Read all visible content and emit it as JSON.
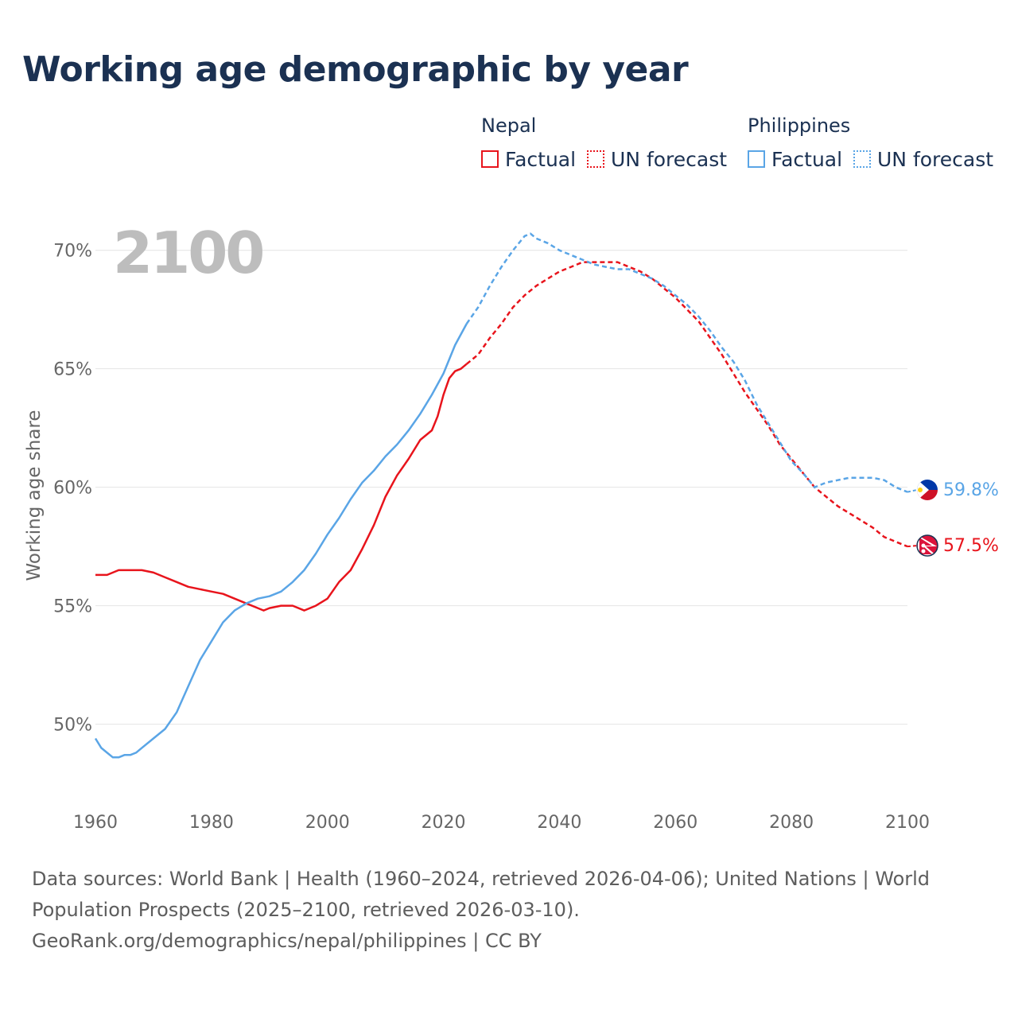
{
  "title": "Working age demographic by year",
  "legend": {
    "groups": [
      {
        "name": "Nepal",
        "factual_label": "Factual",
        "forecast_label": "UN forecast"
      },
      {
        "name": "Philippines",
        "factual_label": "Factual",
        "forecast_label": "UN forecast"
      }
    ]
  },
  "colors": {
    "nepal": "#e8141c",
    "philippines": "#5aa5e6",
    "grid": "#e4e4e4",
    "year": "#bdbdbd"
  },
  "year_display": "2100",
  "end_labels": {
    "nepal": "57.5%",
    "philippines": "59.8%"
  },
  "icons": {
    "nepal": "nepal-flag-icon",
    "philippines": "philippines-flag-icon"
  },
  "sources": {
    "text": "Data sources: World Bank | Health (1960–2024, retrieved 2026-04-06); United Nations | World Population Prospects (2025–2100, retrieved 2026-03-10).",
    "credit": "GeoRank.org/demographics/nepal/philippines | CC BY"
  },
  "chart_data": {
    "type": "line",
    "title": "Working age demographic by year",
    "xlabel": "",
    "ylabel": "Working age share",
    "xlim": [
      1960,
      2100
    ],
    "ylim": [
      47.0,
      71.5
    ],
    "yticks": [
      50,
      55,
      60,
      65,
      70
    ],
    "ytick_labels": [
      "50%",
      "55%",
      "60%",
      "65%",
      "70%"
    ],
    "xticks": [
      1960,
      1980,
      2000,
      2020,
      2040,
      2060,
      2080,
      2100
    ],
    "xtick_labels": [
      "1960",
      "1980",
      "2000",
      "2020",
      "2040",
      "2060",
      "2080",
      "2100"
    ],
    "grid": true,
    "legend_position": "top-right",
    "factual_range": [
      1960,
      2024
    ],
    "forecast_range": [
      2024,
      2100
    ],
    "series": [
      {
        "name": "Nepal",
        "x": [
          1960,
          1962,
          1964,
          1966,
          1968,
          1970,
          1972,
          1974,
          1976,
          1978,
          1980,
          1982,
          1984,
          1986,
          1988,
          1989,
          1990,
          1992,
          1994,
          1996,
          1998,
          2000,
          2002,
          2004,
          2006,
          2008,
          2010,
          2012,
          2014,
          2016,
          2018,
          2019,
          2020,
          2021,
          2022,
          2023,
          2024,
          2026,
          2028,
          2030,
          2032,
          2034,
          2036,
          2038,
          2040,
          2042,
          2044,
          2046,
          2048,
          2050,
          2052,
          2054,
          2056,
          2058,
          2060,
          2062,
          2064,
          2066,
          2068,
          2070,
          2072,
          2074,
          2076,
          2078,
          2080,
          2082,
          2084,
          2086,
          2088,
          2090,
          2092,
          2094,
          2096,
          2098,
          2100
        ],
        "values": [
          56.3,
          56.3,
          56.5,
          56.5,
          56.5,
          56.4,
          56.2,
          56.0,
          55.8,
          55.7,
          55.6,
          55.5,
          55.3,
          55.1,
          54.9,
          54.8,
          54.9,
          55.0,
          55.0,
          54.8,
          55.0,
          55.3,
          56.0,
          56.5,
          57.4,
          58.4,
          59.6,
          60.5,
          61.2,
          62.0,
          62.4,
          63.0,
          63.9,
          64.6,
          64.9,
          65.0,
          65.2,
          65.6,
          66.3,
          66.9,
          67.6,
          68.1,
          68.5,
          68.8,
          69.1,
          69.3,
          69.5,
          69.5,
          69.5,
          69.5,
          69.3,
          69.1,
          68.8,
          68.4,
          68.0,
          67.5,
          67.0,
          66.3,
          65.6,
          64.8,
          64.0,
          63.3,
          62.6,
          61.8,
          61.2,
          60.6,
          60.0,
          59.6,
          59.2,
          58.9,
          58.6,
          58.3,
          57.9,
          57.7,
          57.5
        ]
      },
      {
        "name": "Philippines",
        "x": [
          1960,
          1961,
          1962,
          1963,
          1964,
          1965,
          1966,
          1967,
          1968,
          1970,
          1972,
          1974,
          1976,
          1978,
          1980,
          1982,
          1984,
          1986,
          1988,
          1990,
          1992,
          1994,
          1996,
          1998,
          2000,
          2002,
          2004,
          2006,
          2008,
          2010,
          2012,
          2014,
          2016,
          2018,
          2020,
          2022,
          2024,
          2026,
          2028,
          2030,
          2032,
          2034,
          2035,
          2036,
          2038,
          2040,
          2042,
          2044,
          2046,
          2048,
          2050,
          2052,
          2054,
          2056,
          2058,
          2060,
          2062,
          2064,
          2066,
          2068,
          2070,
          2072,
          2074,
          2076,
          2078,
          2080,
          2082,
          2084,
          2086,
          2088,
          2090,
          2092,
          2094,
          2096,
          2098,
          2100
        ],
        "values": [
          49.4,
          49.0,
          48.8,
          48.6,
          48.6,
          48.7,
          48.7,
          48.8,
          49.0,
          49.4,
          49.8,
          50.5,
          51.6,
          52.7,
          53.5,
          54.3,
          54.8,
          55.1,
          55.3,
          55.4,
          55.6,
          56.0,
          56.5,
          57.2,
          58.0,
          58.7,
          59.5,
          60.2,
          60.7,
          61.3,
          61.8,
          62.4,
          63.1,
          63.9,
          64.8,
          66.0,
          66.9,
          67.6,
          68.5,
          69.3,
          70.0,
          70.6,
          70.7,
          70.5,
          70.3,
          70.0,
          69.8,
          69.6,
          69.4,
          69.3,
          69.2,
          69.2,
          69.0,
          68.8,
          68.5,
          68.1,
          67.7,
          67.2,
          66.6,
          65.9,
          65.3,
          64.5,
          63.5,
          62.7,
          61.9,
          61.1,
          60.6,
          60.0,
          60.2,
          60.3,
          60.4,
          60.4,
          60.4,
          60.3,
          60.0,
          59.8
        ]
      }
    ]
  }
}
